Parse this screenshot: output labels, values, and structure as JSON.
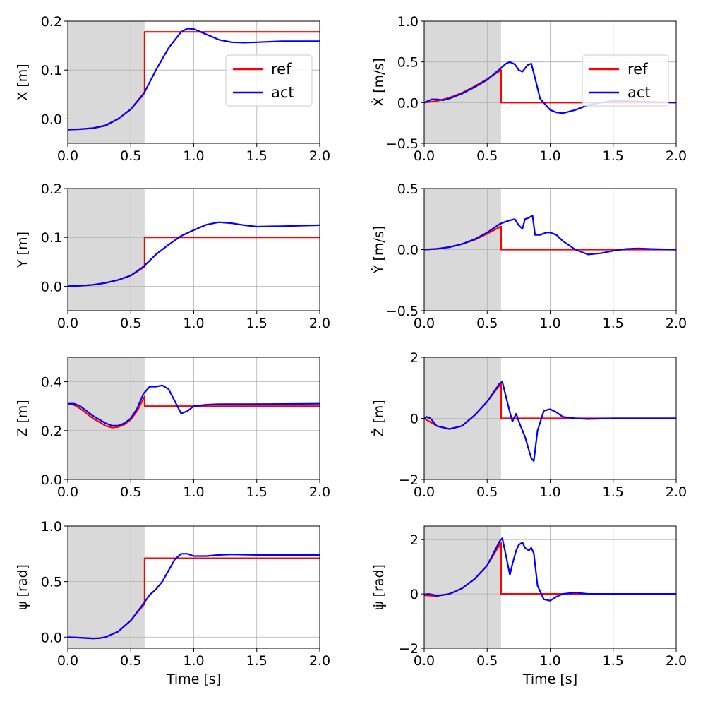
{
  "figure": {
    "title": ""
  },
  "colors": {
    "ref": "#ff0000",
    "act": "#0000ff",
    "shade": "#d9d9d9",
    "grid": "#b0b0b0"
  },
  "chart_data": [
    {
      "id": "x",
      "type": "line",
      "title": "",
      "ylabel": "X [m]",
      "ylabel_math": false,
      "xlabel": "",
      "grid": true,
      "xlim": [
        0,
        2
      ],
      "ylim": [
        -0.05,
        0.2
      ],
      "xticks": [
        0,
        0.5,
        1,
        1.5,
        2
      ],
      "xtick_labels": [
        "0.0",
        "0.5",
        "1.0",
        "1.5",
        "2.0"
      ],
      "yticks": [
        0,
        0.1,
        0.2
      ],
      "ytick_labels": [
        "0.0",
        "0.1",
        "0.2"
      ],
      "shaded_region": [
        0,
        0.61
      ],
      "legend": {
        "location": "upper-right",
        "entries": [
          "ref",
          "act"
        ]
      },
      "series": [
        {
          "name": "ref",
          "x": [
            0,
            0.1,
            0.2,
            0.3,
            0.4,
            0.5,
            0.61,
            0.61,
            2.0
          ],
          "y": [
            -0.022,
            -0.021,
            -0.019,
            -0.014,
            0.0,
            0.02,
            0.055,
            0.178,
            0.178
          ]
        },
        {
          "name": "act",
          "x": [
            0,
            0.1,
            0.2,
            0.3,
            0.4,
            0.5,
            0.6,
            0.7,
            0.8,
            0.9,
            0.95,
            1.0,
            1.1,
            1.2,
            1.3,
            1.4,
            1.5,
            1.7,
            2.0
          ],
          "y": [
            -0.022,
            -0.021,
            -0.019,
            -0.013,
            0.0,
            0.02,
            0.05,
            0.1,
            0.145,
            0.178,
            0.185,
            0.184,
            0.173,
            0.162,
            0.157,
            0.156,
            0.157,
            0.159,
            0.159
          ]
        }
      ]
    },
    {
      "id": "xdot",
      "type": "line",
      "title": "",
      "ylabel": "Ẋ [m/s]",
      "ylabel_math": true,
      "xlabel": "",
      "grid": true,
      "xlim": [
        0,
        2
      ],
      "ylim": [
        -0.5,
        1.0
      ],
      "xticks": [
        0,
        0.5,
        1,
        1.5,
        2
      ],
      "xtick_labels": [
        "0.0",
        "0.5",
        "1.0",
        "1.5",
        "2.0"
      ],
      "yticks": [
        -0.5,
        0,
        0.5,
        1.0
      ],
      "ytick_labels": [
        "−0.5",
        "0.0",
        "0.5",
        "1.0"
      ],
      "shaded_region": [
        0,
        0.61
      ],
      "legend": {
        "location": "upper-right",
        "entries": [
          "ref",
          "act"
        ]
      },
      "series": [
        {
          "name": "ref",
          "x": [
            0,
            0.1,
            0.2,
            0.3,
            0.4,
            0.5,
            0.61,
            0.61,
            2.0
          ],
          "y": [
            0.0,
            0.02,
            0.06,
            0.12,
            0.2,
            0.29,
            0.4,
            0.0,
            0.0
          ]
        },
        {
          "name": "act",
          "x": [
            0,
            0.03,
            0.06,
            0.1,
            0.15,
            0.2,
            0.3,
            0.4,
            0.5,
            0.6,
            0.65,
            0.68,
            0.72,
            0.75,
            0.78,
            0.82,
            0.85,
            0.88,
            0.92,
            1.0,
            1.05,
            1.1,
            1.2,
            1.3,
            1.4,
            1.5,
            1.6,
            1.8,
            2.0
          ],
          "y": [
            0.0,
            0.02,
            0.04,
            0.04,
            0.03,
            0.05,
            0.11,
            0.19,
            0.28,
            0.41,
            0.48,
            0.5,
            0.47,
            0.4,
            0.38,
            0.46,
            0.48,
            0.3,
            0.05,
            -0.09,
            -0.12,
            -0.13,
            -0.09,
            -0.03,
            0.0,
            0.02,
            0.02,
            0.01,
            0.0
          ]
        }
      ]
    },
    {
      "id": "y",
      "type": "line",
      "title": "",
      "ylabel": "Y [m]",
      "ylabel_math": false,
      "xlabel": "",
      "grid": true,
      "xlim": [
        0,
        2
      ],
      "ylim": [
        -0.05,
        0.2
      ],
      "xticks": [
        0,
        0.5,
        1,
        1.5,
        2
      ],
      "xtick_labels": [
        "0.0",
        "0.5",
        "1.0",
        "1.5",
        "2.0"
      ],
      "yticks": [
        0,
        0.1,
        0.2
      ],
      "ytick_labels": [
        "0.0",
        "0.1",
        "0.2"
      ],
      "shaded_region": [
        0,
        0.61
      ],
      "legend": null,
      "series": [
        {
          "name": "ref",
          "x": [
            0,
            0.1,
            0.2,
            0.3,
            0.4,
            0.5,
            0.61,
            0.61,
            2.0
          ],
          "y": [
            0.0,
            0.001,
            0.003,
            0.007,
            0.013,
            0.022,
            0.04,
            0.1,
            0.1
          ]
        },
        {
          "name": "act",
          "x": [
            0,
            0.1,
            0.2,
            0.3,
            0.4,
            0.5,
            0.6,
            0.7,
            0.8,
            0.9,
            1.0,
            1.1,
            1.2,
            1.3,
            1.4,
            1.5,
            1.7,
            2.0
          ],
          "y": [
            0.0,
            0.001,
            0.003,
            0.007,
            0.013,
            0.022,
            0.04,
            0.065,
            0.085,
            0.103,
            0.115,
            0.126,
            0.131,
            0.129,
            0.125,
            0.122,
            0.123,
            0.125
          ]
        }
      ]
    },
    {
      "id": "ydot",
      "type": "line",
      "title": "",
      "ylabel": "Ẏ [m/s]",
      "ylabel_math": true,
      "xlabel": "",
      "grid": true,
      "xlim": [
        0,
        2
      ],
      "ylim": [
        -0.5,
        0.5
      ],
      "xticks": [
        0,
        0.5,
        1,
        1.5,
        2
      ],
      "xtick_labels": [
        "0.0",
        "0.5",
        "1.0",
        "1.5",
        "2.0"
      ],
      "yticks": [
        -0.5,
        0,
        0.5
      ],
      "ytick_labels": [
        "−0.5",
        "0.0",
        "0.5"
      ],
      "shaded_region": [
        0,
        0.61
      ],
      "legend": null,
      "series": [
        {
          "name": "ref",
          "x": [
            0,
            0.1,
            0.2,
            0.3,
            0.4,
            0.5,
            0.61,
            0.61,
            2.0
          ],
          "y": [
            0.0,
            0.005,
            0.02,
            0.045,
            0.08,
            0.13,
            0.19,
            0.0,
            0.0
          ]
        },
        {
          "name": "act",
          "x": [
            0,
            0.1,
            0.2,
            0.3,
            0.4,
            0.5,
            0.6,
            0.65,
            0.68,
            0.72,
            0.75,
            0.78,
            0.8,
            0.83,
            0.86,
            0.88,
            0.92,
            0.97,
            1.0,
            1.05,
            1.1,
            1.2,
            1.3,
            1.4,
            1.5,
            1.6,
            1.7,
            1.8,
            2.0
          ],
          "y": [
            0.0,
            0.007,
            0.02,
            0.045,
            0.085,
            0.14,
            0.21,
            0.23,
            0.24,
            0.25,
            0.2,
            0.17,
            0.25,
            0.26,
            0.28,
            0.12,
            0.12,
            0.14,
            0.14,
            0.12,
            0.07,
            0.0,
            -0.04,
            -0.03,
            -0.01,
            0.005,
            0.01,
            0.005,
            0.0
          ]
        }
      ]
    },
    {
      "id": "z",
      "type": "line",
      "title": "",
      "ylabel": "Z [m]",
      "ylabel_math": false,
      "xlabel": "",
      "grid": true,
      "xlim": [
        0,
        2
      ],
      "ylim": [
        0.0,
        0.5
      ],
      "xticks": [
        0,
        0.5,
        1,
        1.5,
        2
      ],
      "xtick_labels": [
        "0.0",
        "0.5",
        "1.0",
        "1.5",
        "2.0"
      ],
      "yticks": [
        0,
        0.2,
        0.4
      ],
      "ytick_labels": [
        "0.0",
        "0.2",
        "0.4"
      ],
      "shaded_region": [
        0,
        0.61
      ],
      "legend": null,
      "series": [
        {
          "name": "ref",
          "x": [
            0,
            0.05,
            0.1,
            0.2,
            0.3,
            0.35,
            0.4,
            0.45,
            0.5,
            0.55,
            0.61,
            0.61,
            2.0
          ],
          "y": [
            0.31,
            0.305,
            0.29,
            0.25,
            0.22,
            0.212,
            0.215,
            0.225,
            0.245,
            0.28,
            0.34,
            0.3,
            0.3
          ]
        },
        {
          "name": "act",
          "x": [
            0,
            0.05,
            0.1,
            0.2,
            0.3,
            0.35,
            0.4,
            0.45,
            0.5,
            0.55,
            0.6,
            0.65,
            0.7,
            0.75,
            0.8,
            0.85,
            0.9,
            0.95,
            1.0,
            1.1,
            1.2,
            1.4,
            1.7,
            2.0
          ],
          "y": [
            0.31,
            0.31,
            0.3,
            0.26,
            0.23,
            0.22,
            0.22,
            0.23,
            0.25,
            0.29,
            0.35,
            0.38,
            0.38,
            0.385,
            0.37,
            0.32,
            0.27,
            0.28,
            0.3,
            0.306,
            0.308,
            0.308,
            0.309,
            0.31
          ]
        }
      ]
    },
    {
      "id": "zdot",
      "type": "line",
      "title": "",
      "ylabel": "Ż [m]",
      "ylabel_math": true,
      "xlabel": "",
      "grid": true,
      "xlim": [
        0,
        2
      ],
      "ylim": [
        -2,
        2
      ],
      "xticks": [
        0,
        0.5,
        1,
        1.5,
        2
      ],
      "xtick_labels": [
        "0.0",
        "0.5",
        "1.0",
        "1.5",
        "2.0"
      ],
      "yticks": [
        -2,
        0,
        2
      ],
      "ytick_labels": [
        "−2",
        "0",
        "2"
      ],
      "shaded_region": [
        0,
        0.61
      ],
      "legend": null,
      "series": [
        {
          "name": "ref",
          "x": [
            0,
            0.1,
            0.2,
            0.3,
            0.4,
            0.5,
            0.61,
            0.61,
            2.0
          ],
          "y": [
            0.0,
            -0.25,
            -0.35,
            -0.25,
            0.1,
            0.55,
            1.15,
            0.0,
            0.0
          ]
        },
        {
          "name": "act",
          "x": [
            0,
            0.02,
            0.05,
            0.1,
            0.2,
            0.3,
            0.4,
            0.5,
            0.6,
            0.62,
            0.65,
            0.68,
            0.7,
            0.73,
            0.76,
            0.8,
            0.85,
            0.87,
            0.9,
            0.95,
            1.0,
            1.05,
            1.1,
            1.2,
            1.3,
            1.5,
            2.0
          ],
          "y": [
            0.0,
            0.05,
            0.0,
            -0.25,
            -0.35,
            -0.25,
            0.1,
            0.55,
            1.15,
            1.2,
            0.7,
            0.2,
            -0.1,
            0.15,
            -0.2,
            -0.6,
            -1.3,
            -1.4,
            -0.4,
            0.25,
            0.3,
            0.2,
            0.05,
            0.0,
            -0.02,
            0.0,
            0.0
          ]
        }
      ]
    },
    {
      "id": "psi",
      "type": "line",
      "title": "",
      "ylabel": "ψ [rad]",
      "ylabel_math": true,
      "xlabel": "Time [s]",
      "grid": true,
      "xlim": [
        0,
        2
      ],
      "ylim": [
        -0.1,
        1.0
      ],
      "xticks": [
        0,
        0.5,
        1,
        1.5,
        2
      ],
      "xtick_labels": [
        "0.0",
        "0.5",
        "1.0",
        "1.5",
        "2.0"
      ],
      "yticks": [
        0,
        0.5,
        1.0
      ],
      "ytick_labels": [
        "0.0",
        "0.5",
        "1.0"
      ],
      "shaded_region": [
        0,
        0.61
      ],
      "legend": null,
      "series": [
        {
          "name": "ref",
          "x": [
            0,
            0.1,
            0.2,
            0.25,
            0.3,
            0.4,
            0.5,
            0.55,
            0.61,
            0.61,
            2.0
          ],
          "y": [
            0.0,
            -0.005,
            -0.012,
            -0.01,
            0.0,
            0.05,
            0.15,
            0.22,
            0.3,
            0.71,
            0.71
          ]
        },
        {
          "name": "act",
          "x": [
            0,
            0.1,
            0.2,
            0.25,
            0.3,
            0.4,
            0.5,
            0.6,
            0.65,
            0.7,
            0.75,
            0.8,
            0.85,
            0.9,
            0.95,
            1.0,
            1.1,
            1.2,
            1.3,
            1.5,
            2.0
          ],
          "y": [
            0.0,
            -0.005,
            -0.012,
            -0.01,
            0.0,
            0.05,
            0.15,
            0.3,
            0.38,
            0.43,
            0.5,
            0.6,
            0.7,
            0.75,
            0.75,
            0.73,
            0.73,
            0.74,
            0.745,
            0.74,
            0.74
          ]
        }
      ]
    },
    {
      "id": "psidot",
      "type": "line",
      "title": "",
      "ylabel": "ψ̇ [rad]",
      "ylabel_math": true,
      "xlabel": "Time [s]",
      "grid": true,
      "xlim": [
        0,
        2
      ],
      "ylim": [
        -2,
        2.5
      ],
      "xticks": [
        0,
        0.5,
        1,
        1.5,
        2
      ],
      "xtick_labels": [
        "0.0",
        "0.5",
        "1.0",
        "1.5",
        "2.0"
      ],
      "yticks": [
        -2,
        0,
        2
      ],
      "ytick_labels": [
        "−2",
        "0",
        "2"
      ],
      "shaded_region": [
        0,
        0.61
      ],
      "legend": null,
      "series": [
        {
          "name": "ref",
          "x": [
            0,
            0.1,
            0.2,
            0.3,
            0.4,
            0.5,
            0.61,
            0.61,
            2.0
          ],
          "y": [
            -0.05,
            -0.08,
            0.0,
            0.2,
            0.55,
            1.05,
            1.9,
            0.0,
            0.0
          ]
        },
        {
          "name": "act",
          "x": [
            0,
            0.03,
            0.06,
            0.1,
            0.2,
            0.3,
            0.4,
            0.5,
            0.6,
            0.62,
            0.65,
            0.68,
            0.7,
            0.73,
            0.75,
            0.78,
            0.8,
            0.83,
            0.85,
            0.87,
            0.9,
            0.95,
            1.0,
            1.05,
            1.1,
            1.2,
            1.3,
            1.5,
            2.0
          ],
          "y": [
            -0.02,
            0.0,
            -0.02,
            -0.07,
            0.0,
            0.2,
            0.55,
            1.05,
            1.95,
            2.05,
            1.4,
            0.7,
            1.1,
            1.6,
            1.8,
            1.9,
            1.7,
            1.6,
            1.7,
            1.5,
            0.3,
            -0.2,
            -0.25,
            -0.1,
            0.0,
            0.05,
            0.0,
            0.0,
            0.0
          ]
        }
      ]
    }
  ]
}
